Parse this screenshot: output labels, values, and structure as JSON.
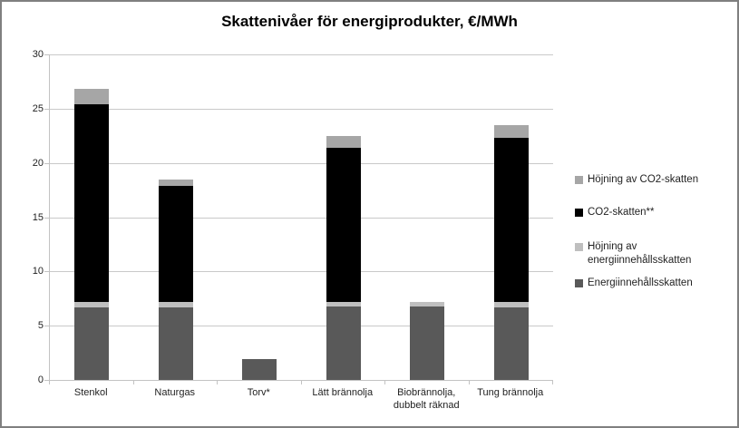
{
  "title": "Skattenivåer för energiprodukter, €/MWh",
  "chart_data": {
    "type": "bar",
    "stacked": true,
    "title": "Skattenivåer för energiprodukter, €/MWh",
    "xlabel": "",
    "ylabel": "",
    "ylim": [
      0,
      30
    ],
    "yticks": [
      0,
      5,
      10,
      15,
      20,
      25,
      30
    ],
    "grid": true,
    "legend_position": "right",
    "categories": [
      "Stenkol",
      "Naturgas",
      "Torv*",
      "Lätt brännolja",
      "Biobrännolja, dubbelt räknad",
      "Tung brännolja"
    ],
    "series": [
      {
        "name": "Energiinnehållsskatten",
        "color": "#595959",
        "values": [
          6.7,
          6.7,
          1.9,
          6.8,
          6.8,
          6.7
        ]
      },
      {
        "name": "Höjning av energiinnehållsskatten",
        "color": "#bfbfbf",
        "values": [
          0.5,
          0.5,
          0,
          0.4,
          0.4,
          0.5
        ]
      },
      {
        "name": "CO2-skatten**",
        "color": "#000000",
        "values": [
          18.2,
          10.7,
          0,
          14.2,
          0,
          15.1
        ]
      },
      {
        "name": "Höjning av CO2-skatten",
        "color": "#a6a6a6",
        "values": [
          1.4,
          0.6,
          0,
          1.1,
          0,
          1.2
        ]
      }
    ],
    "totals": [
      26.8,
      18.5,
      1.9,
      22.5,
      7.2,
      23.5
    ]
  },
  "legend": {
    "items": [
      {
        "label": "Höjning av CO2-skatten",
        "color": "#a6a6a6"
      },
      {
        "label": "CO2-skatten**",
        "color": "#000000"
      },
      {
        "label": "Höjning av energiinnehållsskatten",
        "color": "#bfbfbf"
      },
      {
        "label": "Energiinnehållsskatten",
        "color": "#595959"
      }
    ]
  },
  "colors": {
    "gridline": "#c9c9c9",
    "axis": "#c3c3c3",
    "frame_border": "#7f7f7f",
    "text": "#1f1f1f"
  }
}
